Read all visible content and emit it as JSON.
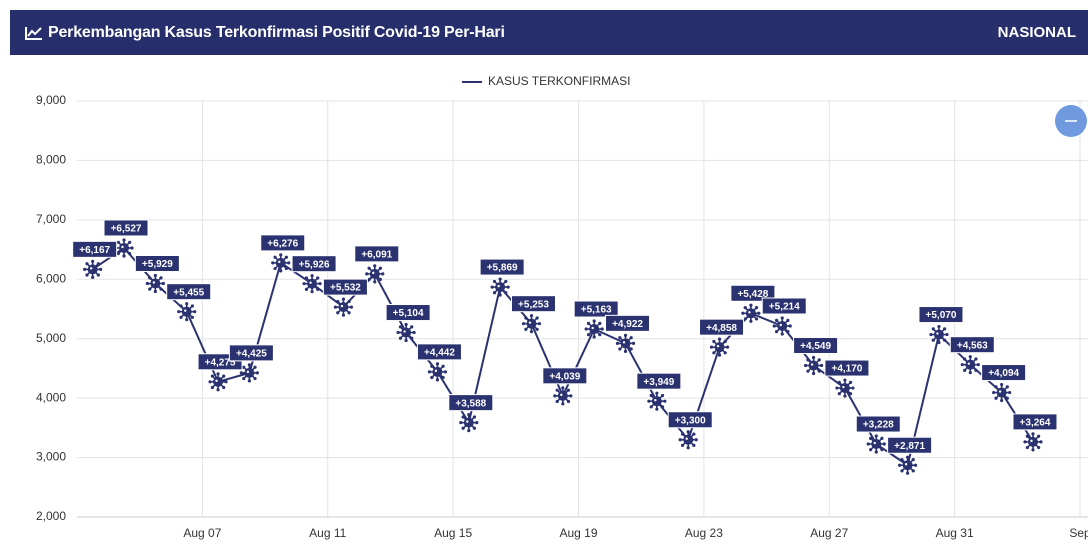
{
  "header": {
    "title": "Perkembangan Kasus Terkonfirmasi Positif Covid-19 Per-Hari",
    "scope": "NASIONAL"
  },
  "chart_data": {
    "type": "line",
    "x": [
      0,
      1,
      2,
      3,
      4,
      5,
      6,
      7,
      8,
      9,
      10,
      11,
      12,
      13,
      14,
      15,
      16,
      17,
      18,
      19,
      20,
      21,
      22,
      23,
      24,
      25,
      26,
      27,
      28,
      29,
      30
    ],
    "series": [
      {
        "name": "KASUS TERKONFIRMASI",
        "color": "#2b3270",
        "values": [
          6167,
          6527,
          5929,
          5455,
          4275,
          4425,
          6276,
          5926,
          5532,
          6091,
          5104,
          4442,
          3588,
          5869,
          5253,
          4039,
          5163,
          4922,
          3949,
          3300,
          4858,
          5428,
          5214,
          4549,
          4170,
          3228,
          2871,
          5070,
          4563,
          4094,
          3264
        ],
        "value_labels": [
          "+6,167",
          "+6,527",
          "+5,929",
          "+5,455",
          "+4,275",
          "+4,425",
          "+6,276",
          "+5,926",
          "+5,532",
          "+6,091",
          "+5,104",
          "+4,442",
          "+3,588",
          "+5,869",
          "+5,253",
          "+4,039",
          "+5,163",
          "+4,922",
          "+3,949",
          "+3,300",
          "+4,858",
          "+5,428",
          "+5,214",
          "+4,549",
          "+4,170",
          "+3,228",
          "+2,871",
          "+5,070",
          "+4,563",
          "+4,094",
          "+3,264"
        ]
      }
    ],
    "xlim": [
      -0.5,
      31.5
    ],
    "xticks": [
      {
        "value": 3.5,
        "label": "Aug 07"
      },
      {
        "value": 7.5,
        "label": "Aug 11"
      },
      {
        "value": 11.5,
        "label": "Aug 15"
      },
      {
        "value": 15.5,
        "label": "Aug 19"
      },
      {
        "value": 19.5,
        "label": "Aug 23"
      },
      {
        "value": 23.5,
        "label": "Aug 27"
      },
      {
        "value": 27.5,
        "label": "Aug 31"
      },
      {
        "value": 31.5,
        "label": "Sep"
      }
    ],
    "ylim": [
      2000,
      9000
    ],
    "yticks": [
      {
        "value": 2000,
        "label": "2,000"
      },
      {
        "value": 3000,
        "label": "3,000"
      },
      {
        "value": 4000,
        "label": "4,000"
      },
      {
        "value": 5000,
        "label": "5,000"
      },
      {
        "value": 6000,
        "label": "6,000"
      },
      {
        "value": 7000,
        "label": "7,000"
      },
      {
        "value": 8000,
        "label": "8,000"
      },
      {
        "value": 9000,
        "label": "9,000"
      }
    ],
    "grid": true,
    "legend": "top"
  }
}
